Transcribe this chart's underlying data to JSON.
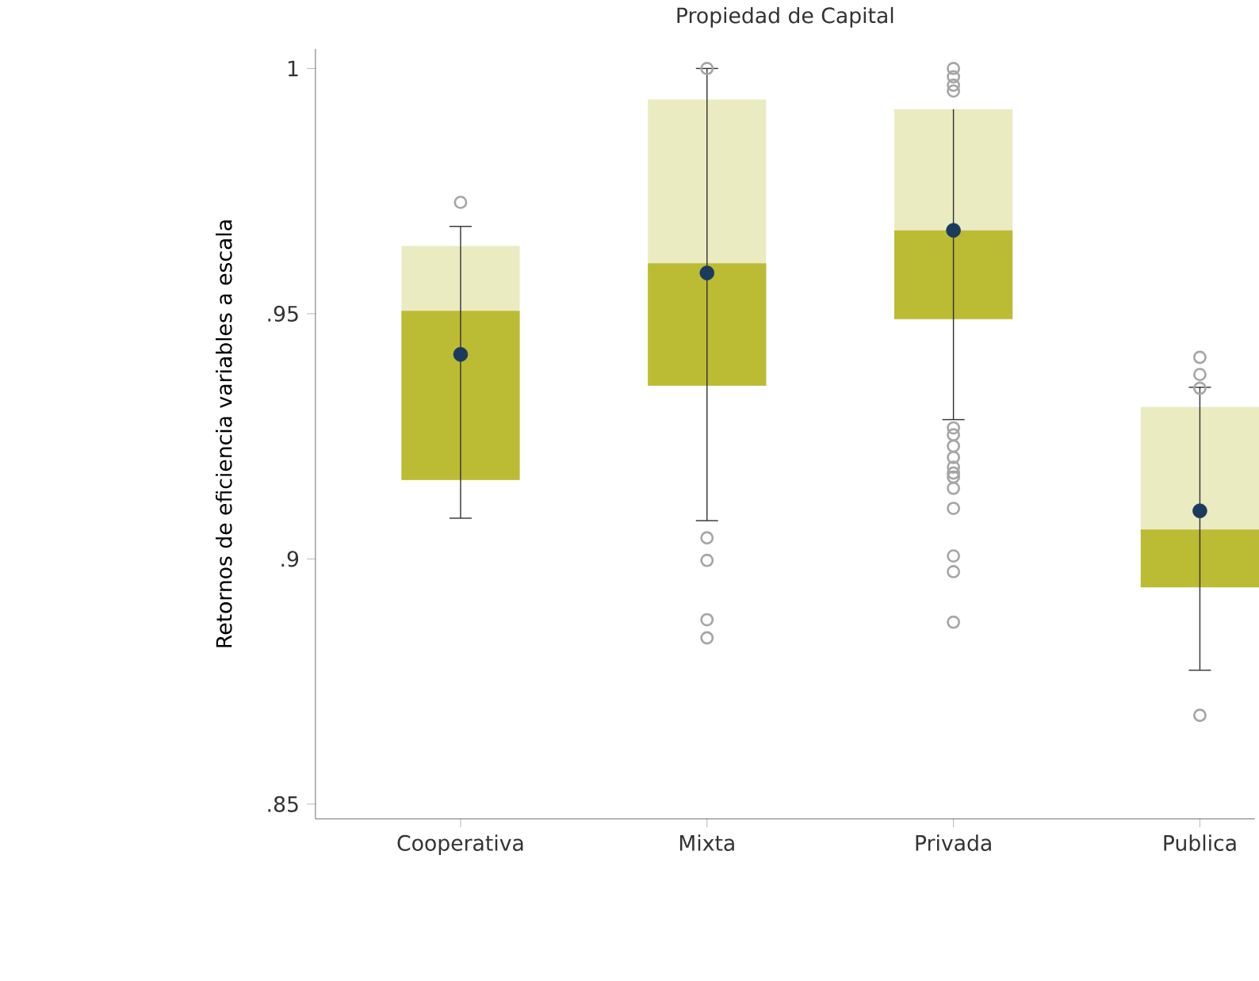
{
  "chart_data": {
    "type": "box",
    "title": "Propiedad de Capital",
    "ylabel": "Retornos de eficiencia variables a escala",
    "categories": [
      "Cooperativa",
      "Mixta",
      "Privada",
      "Publica"
    ],
    "ylim": [
      0.847,
      1.004
    ],
    "yticks": [
      {
        "value": 0.85,
        "label": ".85"
      },
      {
        "value": 0.9,
        "label": ".9"
      },
      {
        "value": 0.95,
        "label": ".95"
      },
      {
        "value": 1,
        "label": "1"
      }
    ],
    "marker": "circle",
    "series": [
      {
        "color": "#bcbb34",
        "boxes": [
          {
            "low": 0.9083,
            "q1": 0.9161,
            "median": 0.9506,
            "q3": 0.9638,
            "high": 0.9678,
            "mean": 0.9417,
            "outliers": [
              0.9727
            ]
          },
          {
            "low": 0.9078,
            "q1": 0.9353,
            "median": 0.9603,
            "q3": 0.9937,
            "high": 1.0,
            "mean": 0.9583,
            "outliers": [
              1.0,
              0.9043,
              0.8997,
              0.8876,
              0.8839
            ]
          },
          {
            "low": 0.9284,
            "q1": 0.9489,
            "median": 0.967,
            "q3": 0.9917,
            "high": 0.9917,
            "mean": 0.967,
            "outliers": [
              1.0,
              0.9983,
              0.9966,
              0.9954,
              0.9267,
              0.9253,
              0.923,
              0.9207,
              0.9187,
              0.9175,
              0.9167,
              0.9144,
              0.9103,
              0.9006,
              0.8974,
              0.8871
            ]
          },
          {
            "low": 0.8773,
            "q1": 0.8942,
            "median": 0.906,
            "q3": 0.931,
            "high": 0.935,
            "mean": 0.9098,
            "outliers": [
              0.9411,
              0.9376,
              0.9348,
              0.8681
            ]
          }
        ]
      }
    ]
  }
}
